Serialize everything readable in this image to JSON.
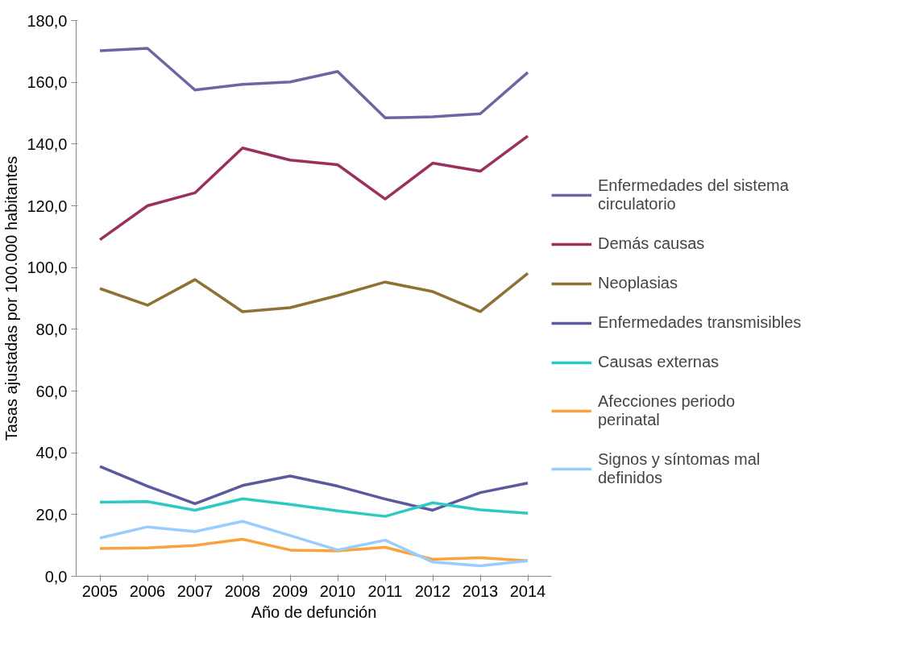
{
  "chart_data": {
    "type": "line",
    "xlabel": "Año de defunción",
    "ylabel": "Tasas ajustadas por 100.000 habitantes",
    "categories": [
      "2005",
      "2006",
      "2007",
      "2008",
      "2009",
      "2010",
      "2011",
      "2012",
      "2013",
      "2014"
    ],
    "ylim": [
      0,
      180
    ],
    "yticks": [
      {
        "value": 0,
        "label": "0,0"
      },
      {
        "value": 20,
        "label": "20,0"
      },
      {
        "value": 40,
        "label": "40,0"
      },
      {
        "value": 60,
        "label": "60,0"
      },
      {
        "value": 80,
        "label": "80,0"
      },
      {
        "value": 100,
        "label": "100,0"
      },
      {
        "value": 120,
        "label": "120,0"
      },
      {
        "value": 140,
        "label": "140,0"
      },
      {
        "value": 160,
        "label": "160,0"
      },
      {
        "value": 180,
        "label": "180,0"
      }
    ],
    "grid": false,
    "legend": "right",
    "marker": "none",
    "line_style": "solid",
    "series": [
      {
        "name": "Enfermedades del sistema circulatorio",
        "color": "#6a67a3",
        "values": [
          170.2,
          171,
          157.5,
          159.3,
          160.1,
          163.5,
          148.5,
          148.8,
          149.8,
          163.2
        ]
      },
      {
        "name": "Demás causas",
        "color": "#9b2f5e",
        "values": [
          109,
          120,
          124.2,
          138.7,
          134.8,
          133.3,
          122.2,
          133.8,
          131.2,
          142.6
        ]
      },
      {
        "name": "Neoplasias",
        "color": "#8e7133",
        "values": [
          93.2,
          87.8,
          96.1,
          85.7,
          87,
          90.9,
          95.3,
          92.2,
          85.7,
          98.1
        ]
      },
      {
        "name": "Enfermedades transmisibles",
        "color": "#5b5a9e",
        "values": [
          35.6,
          29.2,
          23.5,
          29.4,
          32.5,
          29.2,
          25,
          21.4,
          27.1,
          30.2
        ]
      },
      {
        "name": "Causas externas",
        "color": "#2ec9c4",
        "values": [
          24,
          24.2,
          21.4,
          25.1,
          23.3,
          21.2,
          19.4,
          23.8,
          21.5,
          20.4
        ]
      },
      {
        "name": "Afecciones periodo perinatal",
        "color": "#f8a33c",
        "values": [
          9,
          9.2,
          10,
          12,
          8.5,
          8.2,
          9.4,
          5.5,
          6,
          5
        ]
      },
      {
        "name": "Signos y síntomas mal definidos",
        "color": "#99ccff",
        "values": [
          12.4,
          16,
          14.5,
          17.8,
          13.2,
          8.5,
          11.7,
          4.6,
          3.4,
          5
        ]
      }
    ]
  }
}
